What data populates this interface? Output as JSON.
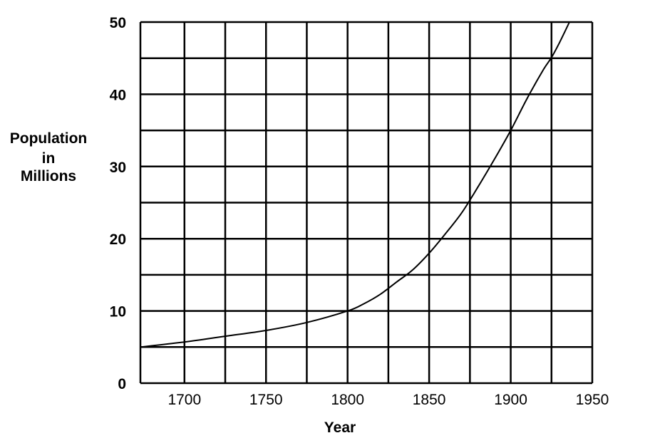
{
  "chart_data": {
    "type": "line",
    "ylabel": [
      "Population",
      "in",
      "Millions"
    ],
    "xlabel": "Year",
    "xlim": [
      1673,
      1950
    ],
    "ylim": [
      0,
      50
    ],
    "x_ticks": [
      1700,
      1750,
      1800,
      1850,
      1900,
      1950
    ],
    "x_tick_labels": [
      "1700",
      "1750",
      "1800",
      "1850",
      "1900",
      "1950"
    ],
    "y_ticks": [
      0,
      10,
      20,
      30,
      40,
      50
    ],
    "y_tick_labels": [
      "0",
      "10",
      "20",
      "30",
      "40",
      "50"
    ],
    "x_grid": [
      1673,
      1700,
      1725,
      1750,
      1775,
      1800,
      1825,
      1850,
      1875,
      1900,
      1925,
      1950
    ],
    "y_grid": [
      0,
      5,
      10,
      15,
      20,
      25,
      30,
      35,
      40,
      45,
      50
    ],
    "grid": true,
    "series": [
      {
        "x": [
          1673,
          1700,
          1725,
          1750,
          1775,
          1800,
          1810,
          1820,
          1830,
          1840,
          1850,
          1860,
          1870,
          1880,
          1890,
          1900,
          1910,
          1920,
          1925,
          1930,
          1936
        ],
        "y": [
          5,
          5.7,
          6.5,
          7.3,
          8.4,
          10,
          11,
          12.3,
          14,
          15.7,
          18,
          20.7,
          23.6,
          27.2,
          31,
          35,
          39.4,
          43.4,
          45.1,
          47.2,
          50
        ]
      }
    ]
  }
}
